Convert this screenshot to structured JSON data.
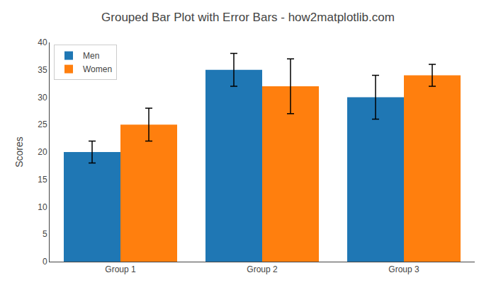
{
  "chart_data": {
    "type": "bar",
    "title": "Grouped Bar Plot with Error Bars - how2matplotlib.com",
    "ylabel": "Scores",
    "categories": [
      "Group 1",
      "Group 2",
      "Group 3"
    ],
    "series": [
      {
        "name": "Men",
        "color": "#1f77b4",
        "values": [
          20,
          35,
          30
        ],
        "errors": [
          2,
          3,
          4
        ]
      },
      {
        "name": "Women",
        "color": "#ff7f0e",
        "values": [
          25,
          32,
          34
        ],
        "errors": [
          3,
          5,
          2
        ]
      }
    ],
    "ylim": [
      0,
      40
    ],
    "yticks": [
      0,
      5,
      10,
      15,
      20,
      25,
      30,
      35,
      40
    ],
    "grid": false,
    "legend": "upper left"
  }
}
